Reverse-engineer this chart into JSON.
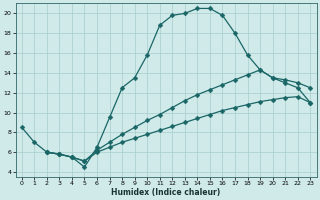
{
  "xlabel": "Humidex (Indice chaleur)",
  "xlim": [
    -0.5,
    23.5
  ],
  "ylim": [
    3.5,
    21.0
  ],
  "xticks": [
    0,
    1,
    2,
    3,
    4,
    5,
    6,
    7,
    8,
    9,
    10,
    11,
    12,
    13,
    14,
    15,
    16,
    17,
    18,
    19,
    20,
    21,
    22,
    23
  ],
  "yticks": [
    4,
    6,
    8,
    10,
    12,
    14,
    16,
    18,
    20
  ],
  "background_color": "#d0eaea",
  "grid_color": "#a8cccc",
  "line_color": "#1a6666",
  "curve1_x": [
    0,
    1,
    2,
    3,
    4,
    5,
    6,
    7,
    8,
    9,
    10,
    11,
    12,
    13,
    14,
    15,
    16,
    17,
    18,
    19,
    20,
    21,
    22,
    23
  ],
  "curve1_y": [
    8.5,
    7.0,
    6.0,
    5.8,
    5.5,
    4.5,
    6.5,
    9.5,
    12.5,
    13.5,
    15.8,
    18.8,
    19.8,
    20.0,
    20.5,
    20.5,
    19.8,
    18.0,
    15.8,
    14.3,
    13.5,
    13.0,
    12.5,
    11.0
  ],
  "curve2_x": [
    2,
    3,
    4,
    5,
    6,
    7,
    8,
    9,
    10,
    11,
    12,
    13,
    14,
    15,
    16,
    17,
    18,
    19,
    20,
    21,
    22,
    23
  ],
  "curve2_y": [
    6.0,
    5.8,
    5.5,
    5.1,
    6.2,
    7.0,
    7.8,
    8.5,
    9.2,
    9.8,
    10.5,
    11.2,
    11.8,
    12.3,
    12.8,
    13.3,
    13.8,
    14.3,
    13.5,
    13.3,
    13.0,
    12.5
  ],
  "curve3_x": [
    2,
    3,
    4,
    5,
    6,
    7,
    8,
    9,
    10,
    11,
    12,
    13,
    14,
    15,
    16,
    17,
    18,
    19,
    20,
    21,
    22,
    23
  ],
  "curve3_y": [
    6.0,
    5.8,
    5.5,
    5.1,
    6.0,
    6.5,
    7.0,
    7.4,
    7.8,
    8.2,
    8.6,
    9.0,
    9.4,
    9.8,
    10.2,
    10.5,
    10.8,
    11.1,
    11.3,
    11.5,
    11.6,
    11.0
  ]
}
